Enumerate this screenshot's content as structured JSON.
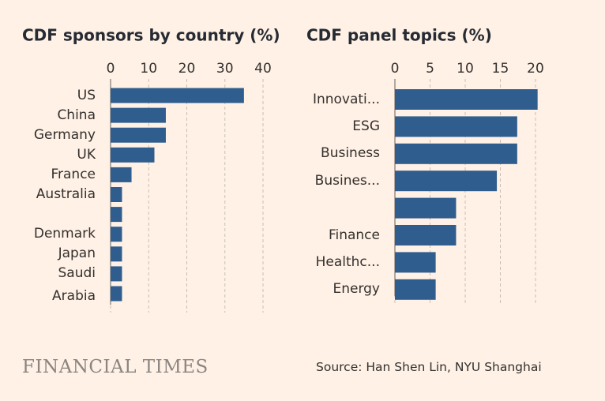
{
  "chart_data": [
    {
      "type": "barh",
      "title": "CDF sponsors by country (%)",
      "categories": [
        "US",
        "China",
        "Germany",
        "UK",
        "France",
        "Australia",
        null,
        "Denmark",
        "Japan",
        "Saudi Arabia",
        null
      ],
      "values": [
        35,
        14.5,
        14.5,
        11.5,
        5.5,
        3,
        3,
        3,
        3,
        3,
        3
      ],
      "color": "#2f5d8e",
      "xlim": [
        0,
        40
      ],
      "xticks": [
        0,
        10,
        20,
        30,
        40
      ],
      "grid": true
    },
    {
      "type": "barh",
      "title": "CDF panel topics (%)",
      "categories": [
        "Innovati...",
        "ESG",
        "Business",
        "Busines...",
        null,
        "Finance",
        "Healthc...",
        "Energy"
      ],
      "values": [
        20.3,
        17.4,
        17.4,
        14.5,
        8.7,
        8.7,
        5.8,
        5.8
      ],
      "color": "#2f5d8e",
      "xlim": [
        0,
        20
      ],
      "xticks": [
        0,
        5,
        10,
        15,
        20
      ],
      "grid": true
    }
  ],
  "footer": {
    "logo": "FINANCIAL TIMES",
    "source": "Source: Han Shen Lin, NYU Shanghai"
  }
}
